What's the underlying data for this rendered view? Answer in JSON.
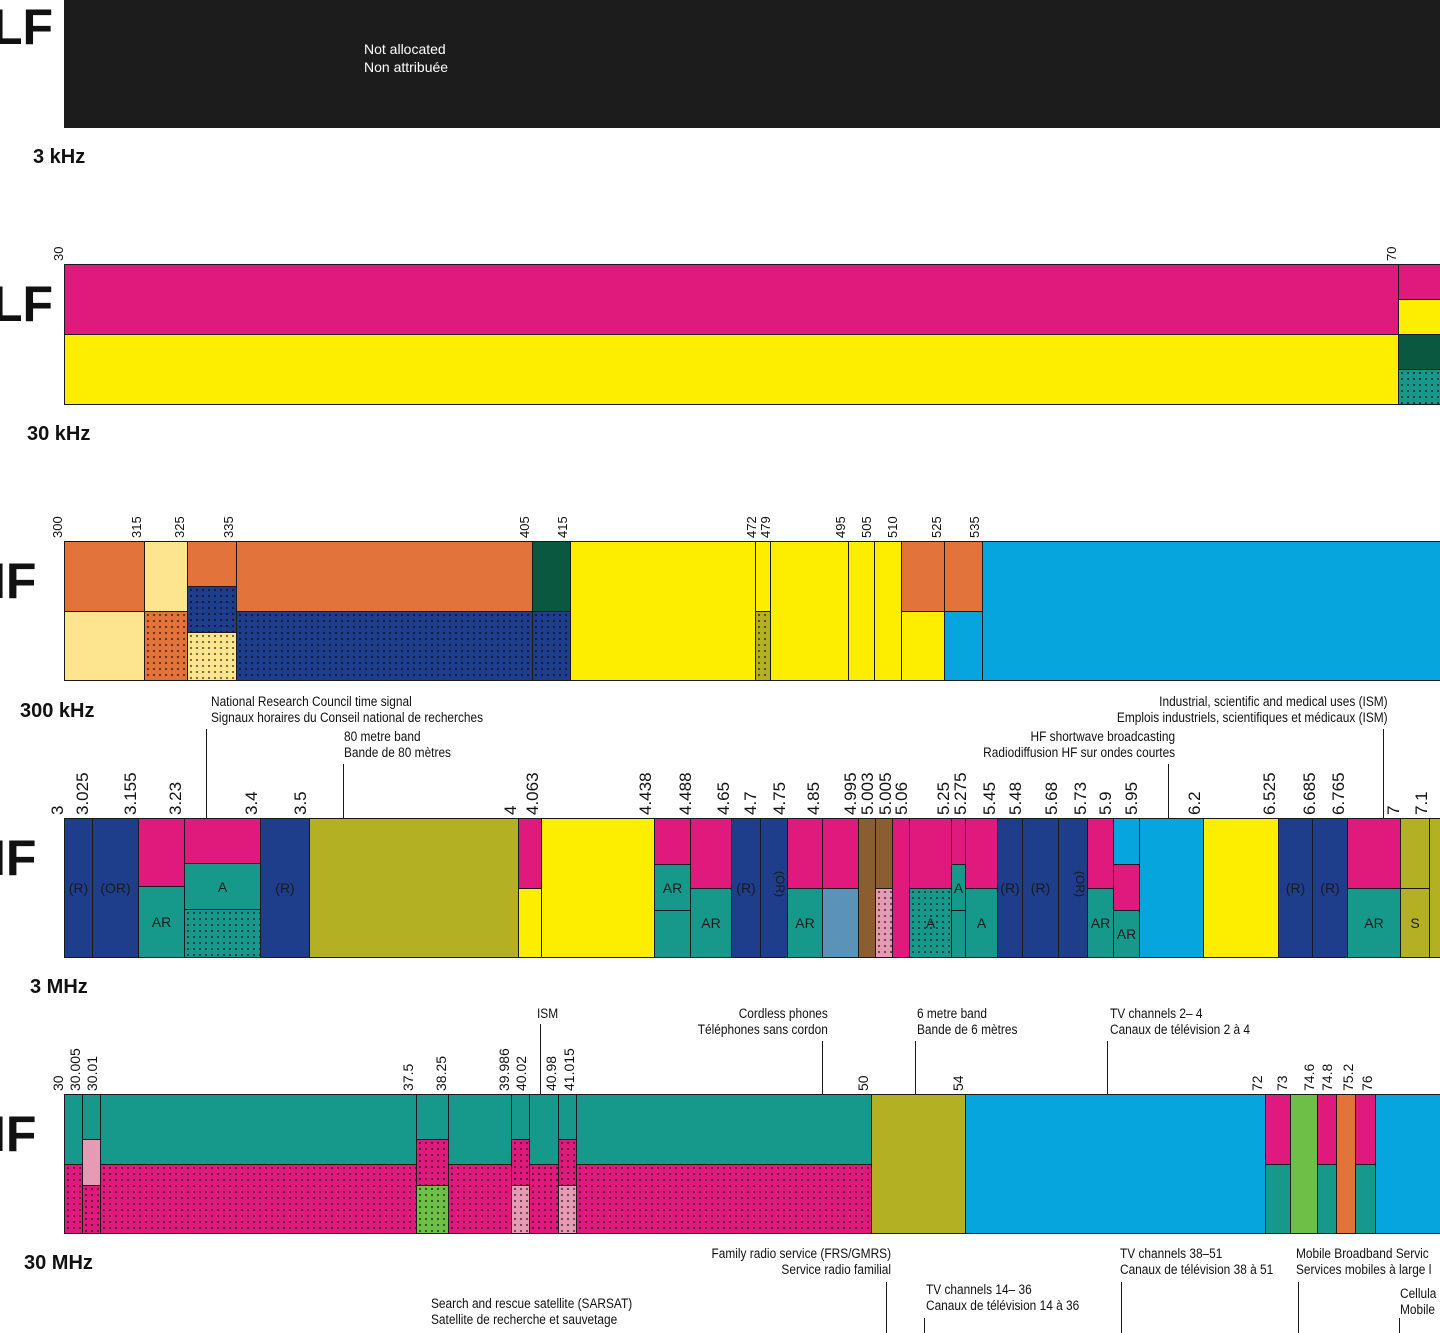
{
  "bands": [
    {
      "id": "elf",
      "name": "LF",
      "freq": "3 kHz"
    },
    {
      "id": "vlf",
      "name": "LF",
      "freq": "30 kHz"
    },
    {
      "id": "lf",
      "name": "IF",
      "freq": "300 kHz"
    },
    {
      "id": "mf",
      "name": "IF",
      "freq": "3 MHz"
    },
    {
      "id": "hf",
      "name": "IF",
      "freq": "30 MHz"
    }
  ],
  "elf_block": {
    "line1": "Not allocated",
    "line2": "Non attribuée"
  },
  "colors": {
    "magenta": "#e0197d",
    "yellow": "#fdee00",
    "darkgreen": "#0a5840",
    "teal": "#16998b",
    "orange": "#e2733a",
    "paleyellow": "#fde58f",
    "navy": "#1e3d8a",
    "olive": "#b3b024",
    "skyblue": "#06a5de",
    "brown": "#8b5e32",
    "steelblue": "#5b93b8",
    "lightgreen": "#6ebf47",
    "pink": "#e79ab4",
    "black": "#1c1c1c"
  },
  "vlf_ticks": [
    "30",
    "70"
  ],
  "lf_ticks": [
    "300",
    "315",
    "325",
    "335",
    "405",
    "415",
    "472",
    "479",
    "495",
    "505",
    "510",
    "525",
    "535"
  ],
  "mf_ticks": [
    "3",
    "3.025",
    "3.155",
    "3.23",
    "3.4",
    "3.5",
    "4",
    "4.063",
    "4.438",
    "4.488",
    "4.65",
    "4.7",
    "4.75",
    "4.85",
    "4.995",
    "5.003",
    "5.005",
    "5.06",
    "5.25",
    "5.275",
    "5.45",
    "5.48",
    "5.68",
    "5.73",
    "5.9",
    "5.95",
    "6.2",
    "6.525",
    "6.685",
    "6.765",
    "7",
    "7.1"
  ],
  "hf_ticks": [
    "30",
    "30.005",
    "30.01",
    "37.5",
    "38.25",
    "39.986",
    "40.02",
    "40.98",
    "41.015",
    "50",
    "54",
    "72",
    "73",
    "74.6",
    "74.8",
    "75.2",
    "76"
  ],
  "mf_cell_text": [
    "(R)",
    "(OR)",
    "AR",
    "A",
    "(R)",
    "AR",
    "AR",
    "(R)",
    "(OR)",
    "AR",
    "A",
    "A",
    "(R)",
    "(R)",
    "(OR)",
    "AR",
    "AR",
    "(R)",
    "(R)",
    "AR",
    "S"
  ],
  "notes": {
    "nrc": {
      "line1": "National Research Council time signal",
      "line2": "Signaux horaires du Conseil national de recherches"
    },
    "m80": {
      "line1": "80 metre band",
      "line2": "Bande de 80 mètres"
    },
    "ism_long": {
      "line1": "Industrial, scientific and medical uses (ISM)",
      "line2": "Emplois industriels, scientifiques et médicaux (ISM)"
    },
    "hf_sw": {
      "line1": "HF shortwave broadcasting",
      "line2": "Radiodiffusion HF sur ondes courtes"
    },
    "ism": {
      "line1": "ISM"
    },
    "cordless": {
      "line1": "Cordless phones",
      "line2": "Téléphones sans cordon"
    },
    "m6": {
      "line1": "6 metre band",
      "line2": "Bande de 6 mètres"
    },
    "tv24": {
      "line1": "TV channels 2– 4",
      "line2": "Canaux de télévision 2 à 4"
    },
    "frs": {
      "line1": "Family radio service (FRS/GMRS)",
      "line2": "Service radio familial"
    },
    "tv1436": {
      "line1": "TV channels 14– 36",
      "line2": "Canaux de télévision 14 à 36"
    },
    "tv3851": {
      "line1": "TV channels 38–51",
      "line2": "Canaux de télévision 38 à 51"
    },
    "mbs": {
      "line1": "Mobile Broadband Servic",
      "line2": "Services mobiles à large l"
    },
    "cell": {
      "line1": "Cellula",
      "line2": "Mobile"
    },
    "sarsat": {
      "line1": "Search and rescue satellite (SARSAT)",
      "line2": "Satellite de recherche et sauvetage"
    }
  }
}
